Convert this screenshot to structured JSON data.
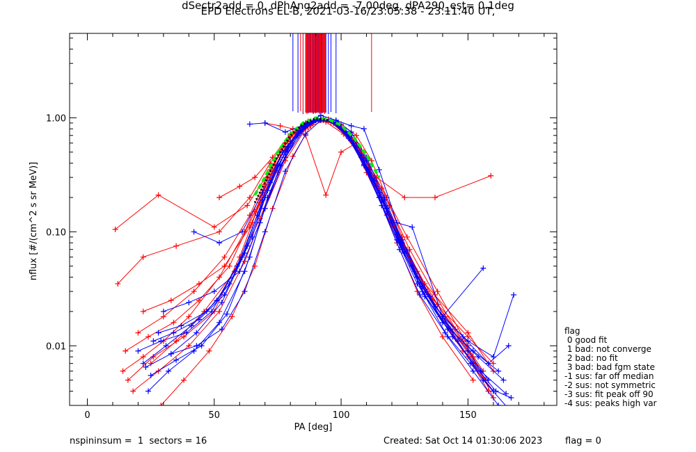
{
  "title_line1": "EPD Electrons EL-B, 2021-03-16/23:05:38 - 23:11:40 UT,",
  "title_line2": "dSectr2add = 0, dPhAng2add = -7.00deg, dPA290_est=   0.1deg",
  "footer": {
    "left": "nspininsum =  1  sectors = 16",
    "created": "Created: Sat Oct 14 01:30:06 2023",
    "flag": "flag = 0"
  },
  "legend": {
    "title": "flag",
    "items": [
      " 0 good fit",
      " 1 bad: not converge",
      " 2 bad: no fit",
      " 3 bad: bad fgm state",
      "-1 sus: far off median",
      "-2 sus: not symmetric",
      "-3 sus: fit peak off 90",
      "-4 sus: peaks high var"
    ]
  },
  "colors": {
    "red": "#ff0000",
    "blue": "#0000ff",
    "green": "#00ee00",
    "black": "#000000"
  },
  "chart_data": {
    "type": "line",
    "xlabel": "PA [deg]",
    "ylabel": "nflux [#/(cm^2 s sr MeV)]",
    "xlim": [
      -7,
      185
    ],
    "ylim": [
      0.003,
      5.5
    ],
    "yscale": "log",
    "xticks": [
      0,
      50,
      100,
      150
    ],
    "yticks": [
      {
        "value": 0.01,
        "label": "0.01"
      },
      {
        "value": 0.1,
        "label": "0.10"
      },
      {
        "value": 1,
        "label": "1.00"
      }
    ],
    "grid": false,
    "legend_position": "right, outside plot",
    "series": [
      {
        "color": "red",
        "x": [
          11,
          28,
          50,
          63,
          71,
          76,
          82,
          88,
          94,
          100,
          106,
          112,
          118,
          124,
          130,
          138,
          150,
          160
        ],
        "y": [
          0.105,
          0.21,
          0.11,
          0.17,
          0.32,
          0.5,
          0.75,
          0.93,
          0.96,
          0.88,
          0.7,
          0.42,
          0.2,
          0.09,
          0.04,
          0.023,
          0.012,
          0.007
        ]
      },
      {
        "color": "red",
        "x": [
          12,
          22,
          35,
          52,
          64,
          72,
          80,
          87,
          93,
          99,
          105,
          111,
          118,
          126,
          134,
          145,
          156
        ],
        "y": [
          0.035,
          0.06,
          0.075,
          0.1,
          0.2,
          0.4,
          0.7,
          0.9,
          0.95,
          0.87,
          0.65,
          0.36,
          0.16,
          0.07,
          0.03,
          0.014,
          0.006
        ]
      },
      {
        "color": "red",
        "x": [
          16,
          26,
          38,
          50,
          60,
          68,
          76,
          84,
          90,
          96,
          102,
          108,
          115,
          122,
          130,
          140,
          152
        ],
        "y": [
          0.005,
          0.008,
          0.012,
          0.02,
          0.06,
          0.18,
          0.45,
          0.82,
          0.97,
          0.92,
          0.72,
          0.45,
          0.2,
          0.08,
          0.03,
          0.012,
          0.005
        ]
      },
      {
        "color": "red",
        "x": [
          15,
          24,
          34,
          44,
          56,
          66,
          74,
          82,
          89,
          95,
          101,
          107,
          114,
          121,
          129,
          139,
          150,
          158
        ],
        "y": [
          0.009,
          0.012,
          0.016,
          0.025,
          0.05,
          0.15,
          0.38,
          0.72,
          0.92,
          0.95,
          0.78,
          0.5,
          0.25,
          0.11,
          0.045,
          0.018,
          0.008,
          0.004
        ]
      },
      {
        "color": "red",
        "x": [
          20,
          30,
          42,
          54,
          64,
          72,
          80,
          86,
          92,
          98,
          104,
          110,
          118,
          128,
          140,
          155
        ],
        "y": [
          0.013,
          0.018,
          0.03,
          0.06,
          0.14,
          0.35,
          0.68,
          0.9,
          0.98,
          0.88,
          0.63,
          0.33,
          0.14,
          0.05,
          0.018,
          0.006
        ]
      },
      {
        "color": "red",
        "x": [
          25,
          35,
          46,
          58,
          68,
          75,
          83,
          90,
          96,
          102,
          109,
          116,
          124,
          133,
          144,
          160
        ],
        "y": [
          0.007,
          0.011,
          0.02,
          0.045,
          0.13,
          0.33,
          0.7,
          0.96,
          0.91,
          0.7,
          0.41,
          0.19,
          0.08,
          0.03,
          0.012,
          0.004
        ]
      },
      {
        "color": "red",
        "x": [
          14,
          22,
          30,
          40,
          52,
          62,
          70,
          78,
          86,
          92,
          98,
          104,
          111,
          119,
          127,
          137,
          148,
          157
        ],
        "y": [
          0.006,
          0.008,
          0.011,
          0.018,
          0.04,
          0.1,
          0.26,
          0.55,
          0.85,
          0.97,
          0.9,
          0.66,
          0.37,
          0.17,
          0.07,
          0.028,
          0.011,
          0.005
        ]
      },
      {
        "color": "red",
        "x": [
          52,
          60,
          66,
          73,
          80,
          87,
          94,
          101,
          108,
          115,
          123,
          133,
          150,
          160
        ],
        "y": [
          0.2,
          0.25,
          0.3,
          0.45,
          0.72,
          0.93,
          0.92,
          0.72,
          0.45,
          0.22,
          0.09,
          0.035,
          0.013,
          0.006
        ]
      },
      {
        "color": "red",
        "x": [
          65,
          71,
          78,
          85,
          92,
          99,
          106,
          114,
          125,
          137,
          159
        ],
        "y": [
          0.12,
          0.3,
          0.6,
          0.88,
          0.98,
          0.85,
          0.58,
          0.3,
          0.2,
          0.2,
          0.31
        ]
      },
      {
        "color": "red",
        "x": [
          70,
          76,
          81,
          86,
          94,
          100,
          106,
          113,
          120
        ],
        "y": [
          0.9,
          0.85,
          0.8,
          0.7,
          0.21,
          0.5,
          0.6,
          0.3,
          0.12
        ]
      },
      {
        "color": "red",
        "x": [
          18,
          28,
          40,
          52,
          62,
          70,
          78,
          86,
          92,
          98,
          104,
          111,
          118,
          126,
          136,
          148
        ],
        "y": [
          0.004,
          0.006,
          0.01,
          0.02,
          0.055,
          0.16,
          0.42,
          0.8,
          0.98,
          0.9,
          0.64,
          0.35,
          0.16,
          0.065,
          0.025,
          0.009
        ]
      },
      {
        "color": "red",
        "x": [
          22,
          33,
          44,
          54,
          64,
          72,
          80,
          88,
          94,
          100,
          106,
          113,
          121,
          130,
          141,
          152,
          160
        ],
        "y": [
          0.02,
          0.025,
          0.035,
          0.05,
          0.11,
          0.28,
          0.6,
          0.9,
          0.96,
          0.82,
          0.56,
          0.28,
          0.12,
          0.045,
          0.018,
          0.008,
          0.0035
        ]
      },
      {
        "color": "red",
        "x": [
          29,
          38,
          48,
          57,
          66,
          73,
          81,
          88,
          95,
          101,
          108,
          116,
          126,
          138,
          150
        ],
        "y": [
          0.003,
          0.005,
          0.009,
          0.018,
          0.05,
          0.16,
          0.46,
          0.85,
          0.97,
          0.82,
          0.52,
          0.24,
          0.09,
          0.03,
          0.01
        ]
      },
      {
        "color": "blue",
        "x": [
          24,
          32,
          42,
          52,
          62,
          70,
          78,
          86,
          92,
          98,
          104,
          110,
          117,
          124,
          132,
          142,
          152,
          162
        ],
        "y": [
          0.004,
          0.006,
          0.009,
          0.016,
          0.045,
          0.16,
          0.45,
          0.82,
          0.97,
          0.92,
          0.7,
          0.42,
          0.19,
          0.08,
          0.03,
          0.012,
          0.006,
          0.003
        ]
      },
      {
        "color": "blue",
        "x": [
          22,
          31,
          41,
          51,
          61,
          69,
          77,
          85,
          91,
          97,
          103,
          109,
          116,
          123,
          131,
          141,
          151,
          160
        ],
        "y": [
          0.007,
          0.01,
          0.015,
          0.025,
          0.06,
          0.19,
          0.5,
          0.86,
          0.98,
          0.9,
          0.66,
          0.38,
          0.17,
          0.07,
          0.028,
          0.013,
          0.007,
          0.004
        ]
      },
      {
        "color": "blue",
        "x": [
          26,
          34,
          44,
          54,
          63,
          71,
          79,
          87,
          93,
          99,
          105,
          111,
          118,
          125,
          133,
          143,
          154,
          164
        ],
        "y": [
          0.011,
          0.013,
          0.017,
          0.028,
          0.075,
          0.23,
          0.56,
          0.9,
          0.97,
          0.86,
          0.6,
          0.33,
          0.15,
          0.065,
          0.027,
          0.014,
          0.008,
          0.005
        ]
      },
      {
        "color": "blue",
        "x": [
          20,
          29,
          39,
          49,
          59,
          67,
          75,
          83,
          90,
          96,
          102,
          108,
          115,
          122,
          130,
          140,
          150,
          158
        ],
        "y": [
          0.009,
          0.011,
          0.013,
          0.02,
          0.05,
          0.14,
          0.38,
          0.74,
          0.95,
          0.95,
          0.76,
          0.47,
          0.22,
          0.095,
          0.04,
          0.018,
          0.009,
          0.005
        ]
      },
      {
        "color": "blue",
        "x": [
          28,
          37,
          47,
          56,
          65,
          72,
          80,
          88,
          94,
          100,
          106,
          113,
          120,
          128,
          137,
          148,
          158,
          166
        ],
        "y": [
          0.013,
          0.015,
          0.02,
          0.035,
          0.09,
          0.27,
          0.62,
          0.93,
          0.96,
          0.82,
          0.55,
          0.28,
          0.12,
          0.05,
          0.022,
          0.012,
          0.007,
          0.01
        ]
      },
      {
        "color": "blue",
        "x": [
          25,
          35,
          45,
          55,
          64,
          71,
          79,
          86,
          92,
          98,
          104,
          111,
          118,
          126,
          135,
          146,
          156,
          166
        ],
        "y": [
          0.0055,
          0.0075,
          0.01,
          0.019,
          0.06,
          0.2,
          0.52,
          0.84,
          0.97,
          0.89,
          0.63,
          0.35,
          0.16,
          0.068,
          0.027,
          0.011,
          0.005,
          0.0028
        ]
      },
      {
        "color": "blue",
        "x": [
          30,
          40,
          50,
          60,
          68,
          76,
          84,
          90,
          96,
          102,
          108,
          115,
          122,
          130,
          140,
          152,
          162
        ],
        "y": [
          0.02,
          0.024,
          0.03,
          0.045,
          0.12,
          0.38,
          0.76,
          0.96,
          0.94,
          0.74,
          0.45,
          0.2,
          0.085,
          0.035,
          0.016,
          0.009,
          0.006
        ]
      },
      {
        "color": "blue",
        "x": [
          42,
          52,
          61,
          69,
          77,
          85,
          91,
          97,
          103,
          109,
          116,
          123,
          131,
          140,
          150,
          160,
          168
        ],
        "y": [
          0.1,
          0.08,
          0.1,
          0.22,
          0.5,
          0.84,
          0.98,
          0.92,
          0.7,
          0.42,
          0.19,
          0.08,
          0.035,
          0.018,
          0.011,
          0.008,
          0.028
        ]
      },
      {
        "color": "blue",
        "x": [
          64,
          70,
          78,
          86,
          92,
          98,
          104,
          109,
          115,
          122,
          128,
          140,
          156
        ],
        "y": [
          0.88,
          0.9,
          0.75,
          0.88,
          1.05,
          0.95,
          0.85,
          0.8,
          0.35,
          0.12,
          0.11,
          0.018,
          0.048
        ]
      },
      {
        "color": "blue",
        "x": [
          33,
          43,
          53,
          62,
          70,
          78,
          86,
          92,
          98,
          104,
          110,
          117,
          124,
          132,
          142,
          152,
          161,
          167
        ],
        "y": [
          0.0085,
          0.01,
          0.014,
          0.03,
          0.1,
          0.34,
          0.72,
          0.95,
          0.95,
          0.75,
          0.45,
          0.2,
          0.085,
          0.033,
          0.014,
          0.007,
          0.004,
          0.0035
        ]
      },
      {
        "color": "blue",
        "x": [
          23,
          33,
          43,
          53,
          62,
          70,
          78,
          85,
          91,
          97,
          103,
          109,
          116,
          124,
          133,
          144,
          155,
          165
        ],
        "y": [
          0.0065,
          0.0085,
          0.013,
          0.024,
          0.065,
          0.2,
          0.5,
          0.82,
          0.98,
          0.91,
          0.68,
          0.39,
          0.17,
          0.07,
          0.028,
          0.012,
          0.006,
          0.0038
        ]
      }
    ],
    "fit_curves": [
      {
        "color": "green",
        "style": "dashed",
        "x": [
          66,
          70,
          75,
          80,
          85,
          90,
          95,
          100,
          105,
          110,
          115
        ],
        "y": [
          0.21,
          0.3,
          0.5,
          0.72,
          0.9,
          1.0,
          0.97,
          0.86,
          0.67,
          0.47,
          0.3
        ]
      },
      {
        "color": "black",
        "style": "dotted",
        "x": [
          66,
          70,
          75,
          80,
          85,
          90,
          95
        ],
        "y": [
          0.18,
          0.27,
          0.46,
          0.7,
          0.88,
          0.99,
          0.95
        ]
      }
    ],
    "vertical_lines": [
      {
        "color": "blue",
        "x": [
          81,
          83,
          85,
          86,
          87,
          88,
          88.5,
          89,
          89.5,
          90,
          90.5,
          91,
          91.5,
          92,
          92.5,
          93,
          94,
          95,
          96,
          98
        ]
      },
      {
        "color": "red",
        "x": [
          84,
          85,
          86.5,
          87.5,
          89.2,
          90.7,
          91.8,
          93.5,
          112
        ]
      }
    ]
  }
}
